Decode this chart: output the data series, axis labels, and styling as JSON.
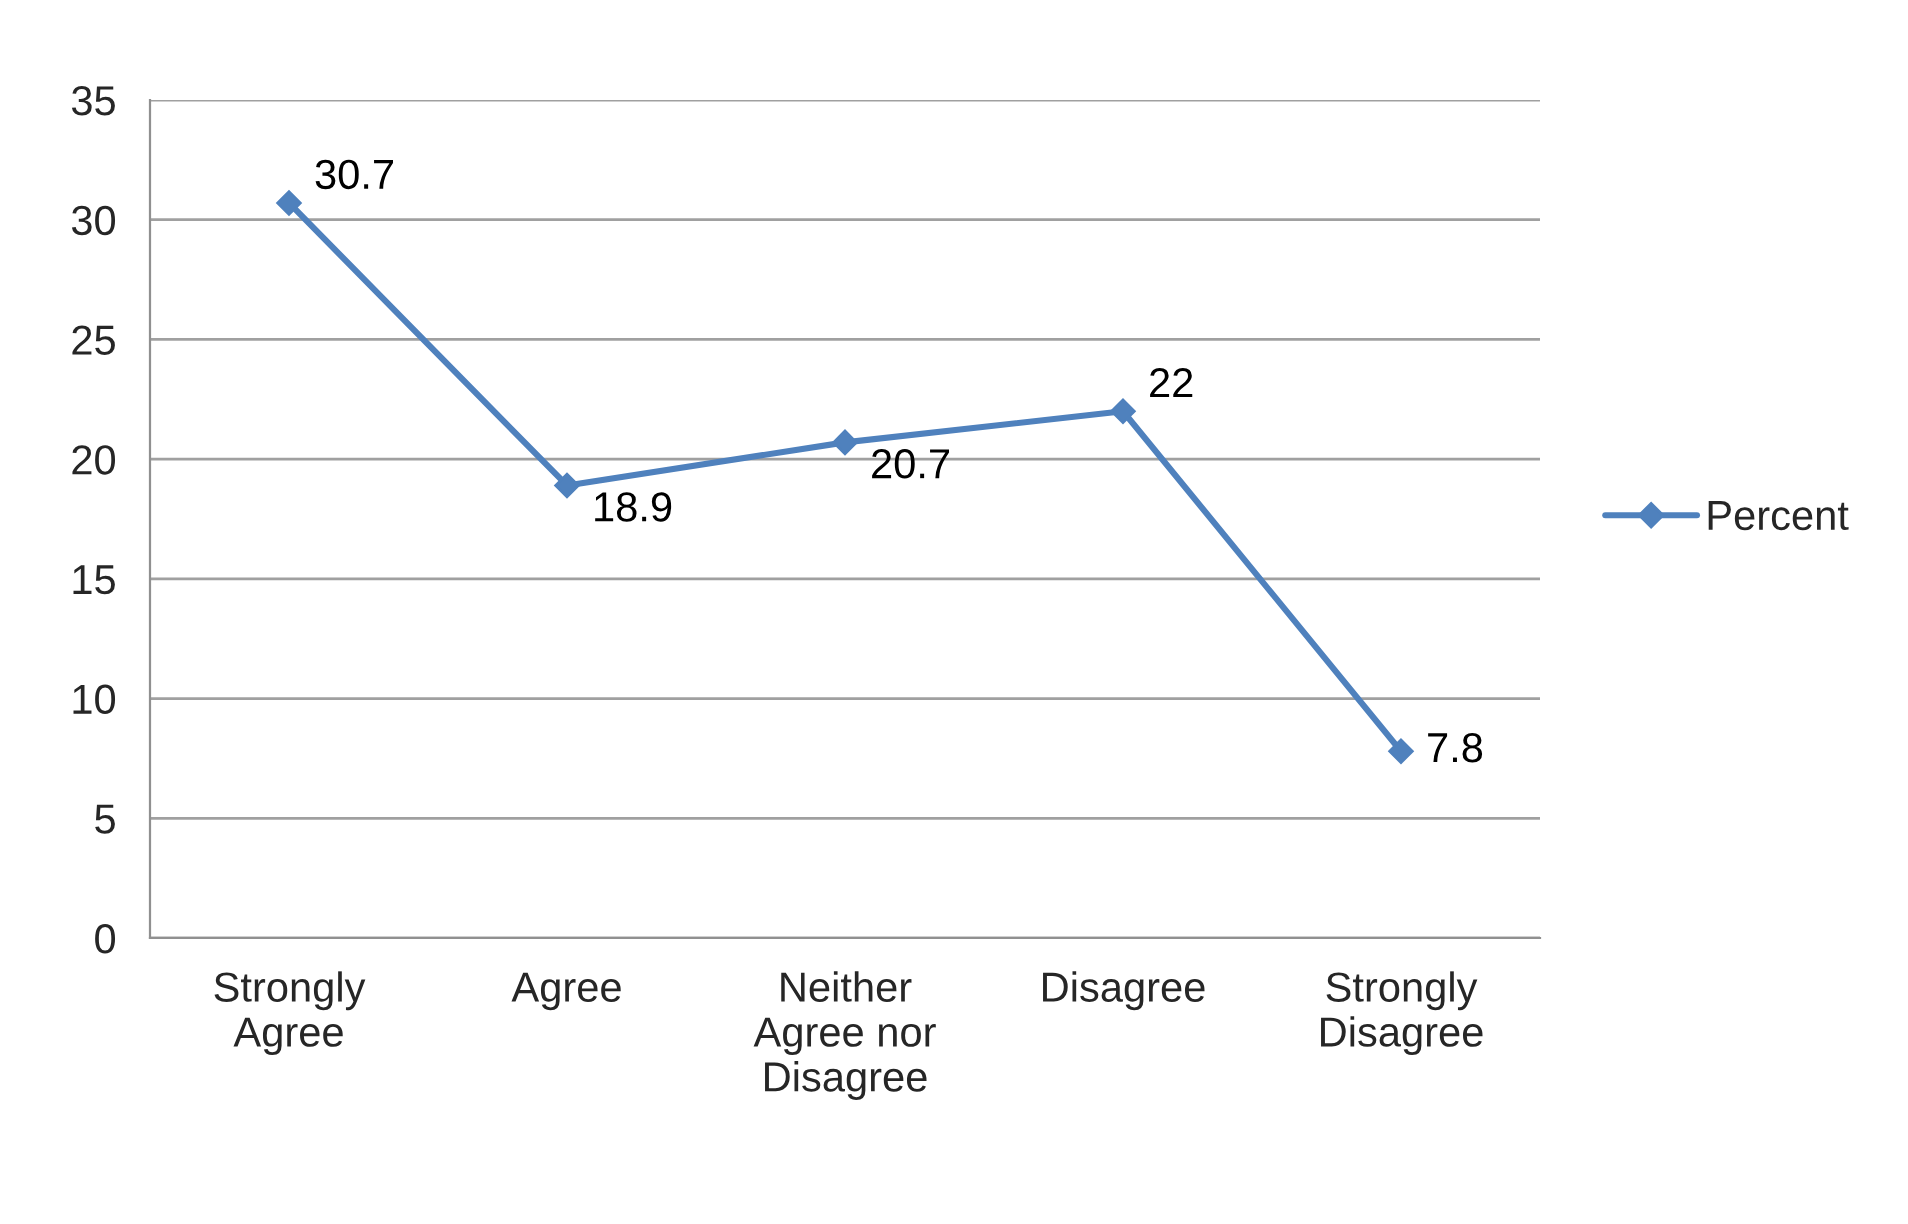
{
  "chart_data": {
    "type": "line",
    "categories": [
      "Strongly\nAgree",
      "Agree",
      "Neither\nAgree nor\nDisagree",
      "Disagree",
      "Strongly\nDisagree"
    ],
    "series": [
      {
        "name": "Percent",
        "color": "#4f81bd",
        "values": [
          30.7,
          18.9,
          20.7,
          22,
          7.8
        ]
      }
    ],
    "ylim": [
      0,
      35
    ],
    "yticks": [
      0,
      5,
      10,
      15,
      20,
      25,
      30,
      35
    ],
    "grid": "y",
    "legend": "right",
    "marker": "diamond",
    "line_style": "solid",
    "data_labels": true
  }
}
